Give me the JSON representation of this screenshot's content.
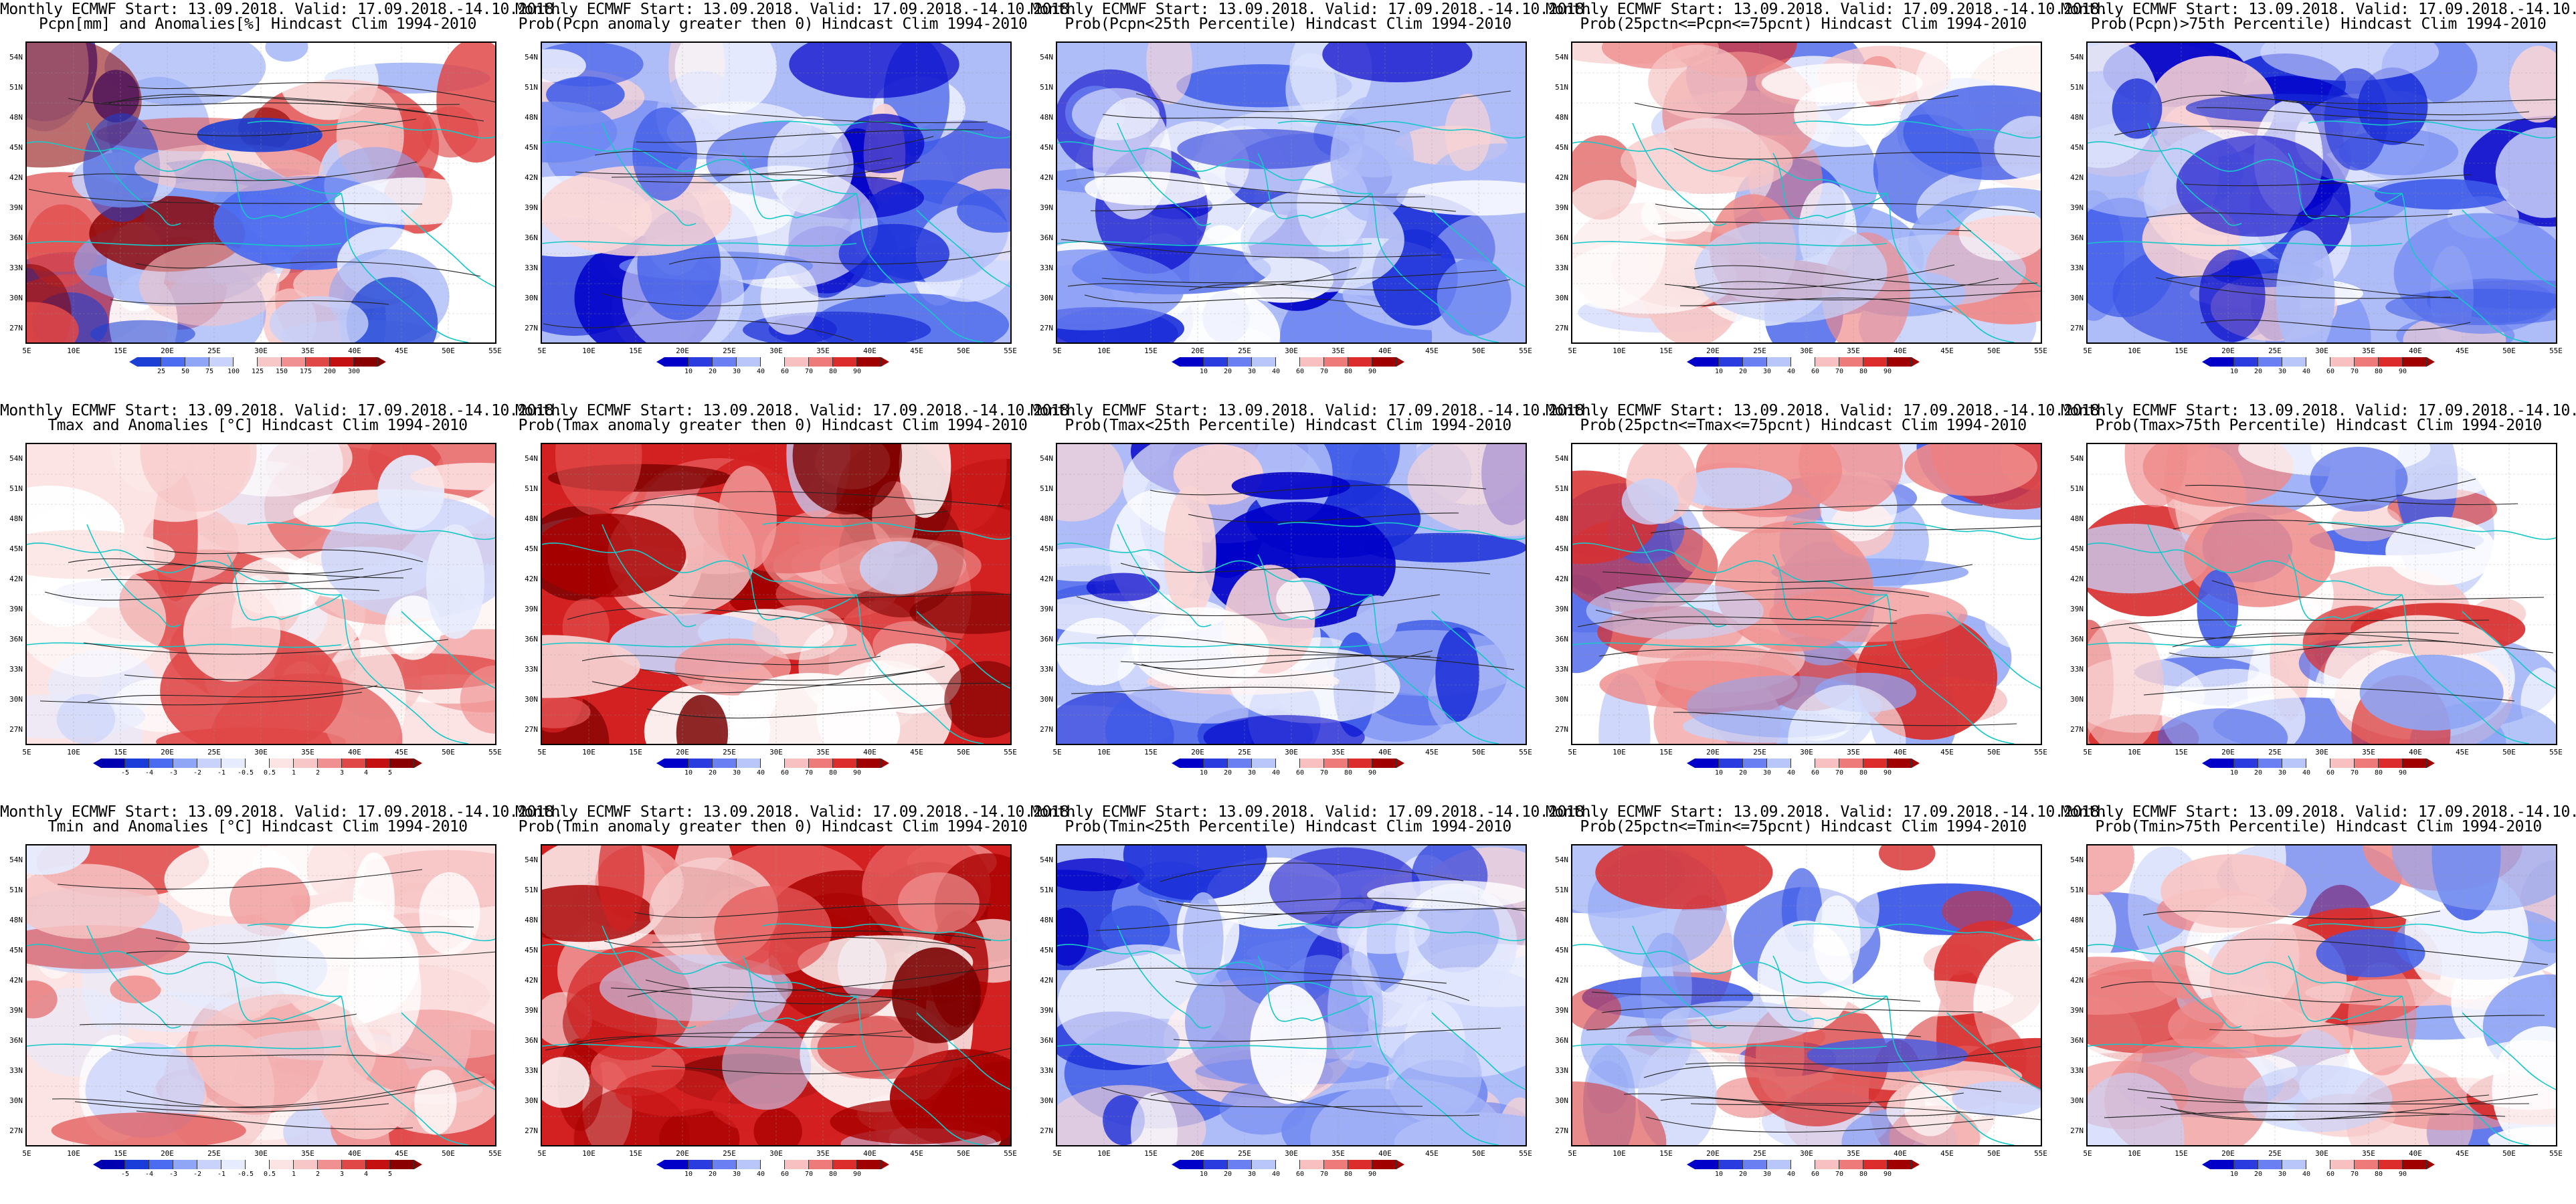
{
  "title_line1": "Monthly ECMWF Start: 13.09.2018. Valid: 17.09.2018.-14.10.2018.",
  "lat_labels": [
    "54N",
    "51N",
    "48N",
    "45N",
    "42N",
    "39N",
    "36N",
    "33N",
    "30N",
    "27N"
  ],
  "lon_labels": [
    "5E",
    "10E",
    "15E",
    "20E",
    "25E",
    "30E",
    "35E",
    "40E",
    "45E",
    "50E",
    "55E"
  ],
  "colorbars": {
    "pcpn": {
      "labels": [
        "25",
        "50",
        "75",
        "100",
        "125",
        "150",
        "175",
        "200",
        "300"
      ],
      "colors": [
        "#1a3fd4",
        "#4b6cf0",
        "#8fa5f5",
        "#c8d2fa",
        "#ffffff",
        "#f7c6c6",
        "#f09090",
        "#e04848",
        "#c41010",
        "#8a0000"
      ]
    },
    "prob": {
      "labels": [
        "10",
        "20",
        "30",
        "40",
        "60",
        "70",
        "80",
        "90"
      ],
      "colors": [
        "#0000c8",
        "#2a3ce0",
        "#6a80f2",
        "#b8c6fa",
        "#ffffff",
        "#f8c0c0",
        "#ee7a7a",
        "#dc2c2c",
        "#a00000"
      ]
    },
    "temp": {
      "labels": [
        "-5",
        "-4",
        "-3",
        "-2",
        "-1",
        "-0.5",
        "0.5",
        "1",
        "2",
        "3",
        "4",
        "5"
      ],
      "colors": [
        "#0000b0",
        "#1a3cd8",
        "#4b6cf0",
        "#8fa5f5",
        "#c8d2fa",
        "#e6ebfd",
        "#ffffff",
        "#fde4e4",
        "#f7c6c6",
        "#f09090",
        "#e04848",
        "#c41010",
        "#8a0000"
      ]
    }
  },
  "panels": [
    {
      "row": 0,
      "col": 0,
      "title": "Pcpn[mm] and Anomalies[%] Hindcast Clim 1994-2010",
      "cbar": "pcpn",
      "palette": "pcpn",
      "seed": 11
    },
    {
      "row": 0,
      "col": 1,
      "title": "Prob(Pcpn anomaly greater then 0) Hindcast Clim 1994-2010",
      "cbar": "prob",
      "palette": "blue",
      "seed": 23
    },
    {
      "row": 0,
      "col": 2,
      "title": "Prob(Pcpn<25th Percentile) Hindcast Clim 1994-2010",
      "cbar": "prob",
      "palette": "blue",
      "seed": 37
    },
    {
      "row": 0,
      "col": 3,
      "title": "Prob(25pctn<=Pcpn<=75pcnt) Hindcast Clim 1994-2010",
      "cbar": "prob",
      "palette": "mixed",
      "seed": 41
    },
    {
      "row": 0,
      "col": 4,
      "title": "Prob(Pcpn)>75th Percentile) Hindcast Clim 1994-2010",
      "cbar": "prob",
      "palette": "blue",
      "seed": 53
    },
    {
      "row": 1,
      "col": 0,
      "title": "Tmax and Anomalies [°C] Hindcast Clim 1994-2010",
      "cbar": "temp",
      "palette": "warm",
      "seed": 61
    },
    {
      "row": 1,
      "col": 1,
      "title": "Prob(Tmax anomaly greater then 0) Hindcast Clim 1994-2010",
      "cbar": "prob",
      "palette": "red",
      "seed": 71
    },
    {
      "row": 1,
      "col": 2,
      "title": "Prob(Tmax<25th Percentile) Hindcast Clim 1994-2010",
      "cbar": "prob",
      "palette": "blue",
      "seed": 83
    },
    {
      "row": 1,
      "col": 3,
      "title": "Prob(25pctn<=Tmax<=75pcnt) Hindcast Clim 1994-2010",
      "cbar": "prob",
      "palette": "mixed",
      "seed": 97
    },
    {
      "row": 1,
      "col": 4,
      "title": "Prob(Tmax>75th Percentile) Hindcast Clim 1994-2010",
      "cbar": "prob",
      "palette": "mixed",
      "seed": 103
    },
    {
      "row": 2,
      "col": 0,
      "title": "Tmin and Anomalies [°C] Hindcast Clim 1994-2010",
      "cbar": "temp",
      "palette": "warm",
      "seed": 113
    },
    {
      "row": 2,
      "col": 1,
      "title": "Prob(Tmin anomaly greater then 0) Hindcast Clim 1994-2010",
      "cbar": "prob",
      "palette": "red",
      "seed": 127
    },
    {
      "row": 2,
      "col": 2,
      "title": "Prob(Tmin<25th Percentile) Hindcast Clim 1994-2010",
      "cbar": "prob",
      "palette": "blue",
      "seed": 131
    },
    {
      "row": 2,
      "col": 3,
      "title": "Prob(25pctn<=Tmin<=75pcnt) Hindcast Clim 1994-2010",
      "cbar": "prob",
      "palette": "mixed",
      "seed": 149
    },
    {
      "row": 2,
      "col": 4,
      "title": "Prob(Tmin>75th Percentile) Hindcast Clim 1994-2010",
      "cbar": "prob",
      "palette": "mixed",
      "seed": 151
    }
  ]
}
